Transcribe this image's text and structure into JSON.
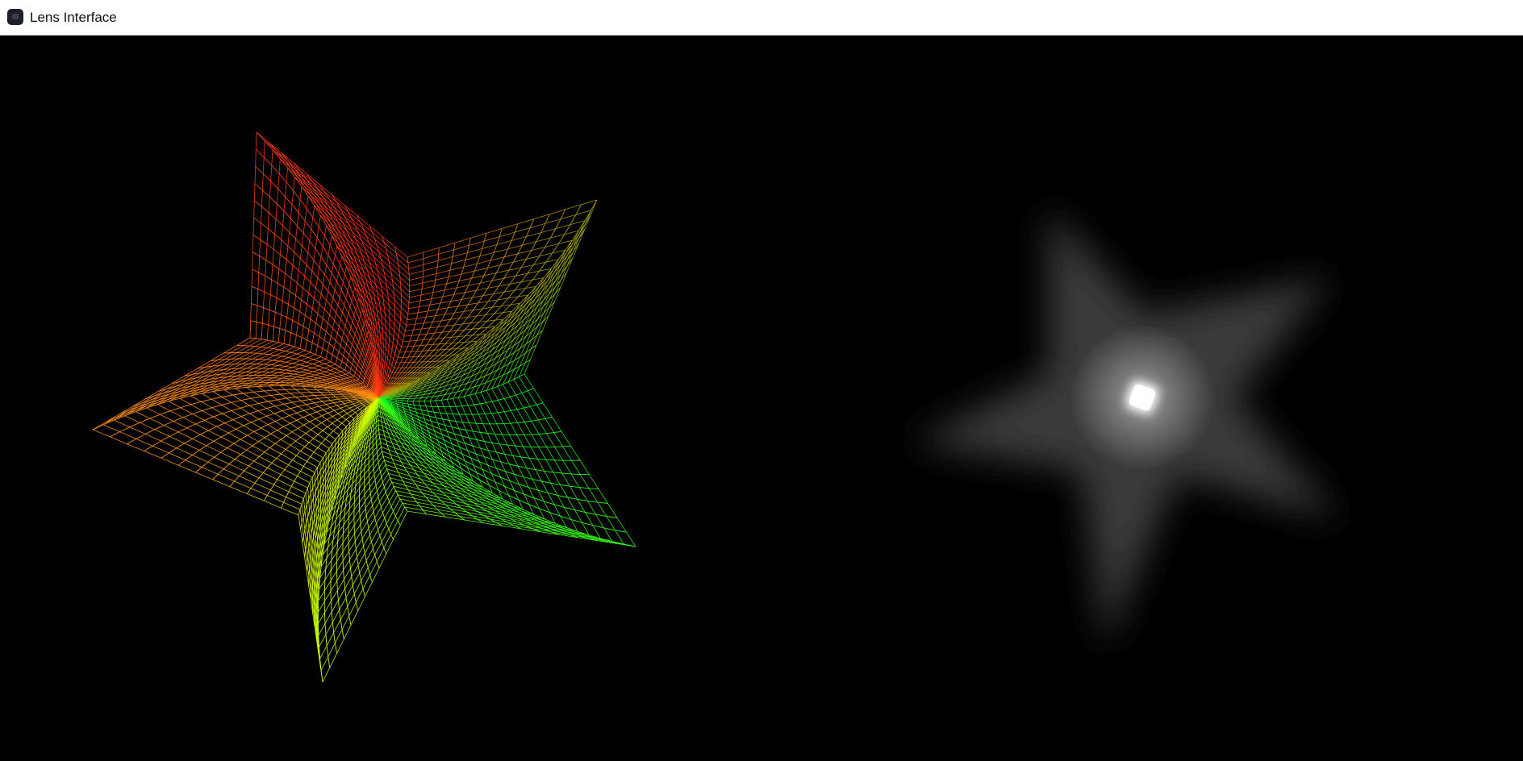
{
  "window": {
    "title": "Lens Interface",
    "icon": "app-icon"
  },
  "scene": {
    "background_color": "#000000",
    "left_panel": {
      "description_name": "wireframe-star-mesh",
      "colors": [
        "#ff2a10",
        "#ff9a10",
        "#ffff00",
        "#55ff00",
        "#00ff2a"
      ]
    },
    "right_panel": {
      "description_name": "glowing-star-render",
      "glow_color": "#ffffff"
    }
  }
}
